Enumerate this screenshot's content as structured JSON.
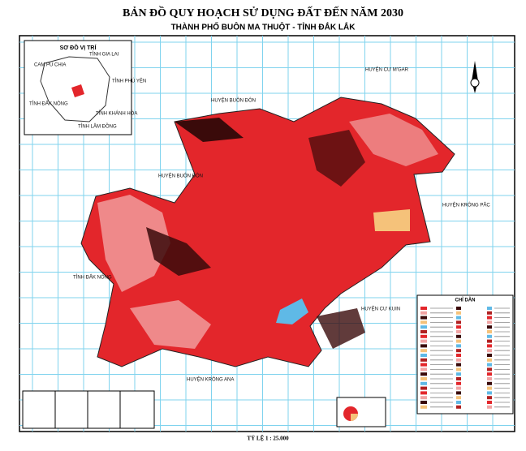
{
  "header": {
    "title": "BẢN ĐỒ QUY HOẠCH SỬ DỤNG ĐẤT ĐẾN NĂM 2030",
    "subtitle": "THÀNH PHỐ BUÔN MA THUỘT - TỈNH ĐẮK LẮK"
  },
  "inset": {
    "title": "SƠ ĐỒ VỊ TRÍ",
    "labels": [
      "CAM PU CHIA",
      "TỈNH GIA LAI",
      "TỈNH PHÚ YÊN",
      "TỈNH ĐẮK NÔNG",
      "TỈNH KHÁNH HÒA",
      "TỈNH LÂM ĐỒNG"
    ]
  },
  "regions": [
    "HUYỆN CƯ M'GAR",
    "HUYỆN BUÔN ĐÔN",
    "HUYỆN BUÔN ĐÔN",
    "HUYỆN KRÔNG PẮC",
    "TỈNH ĐẮK NÔNG",
    "HUYỆN CƯ KUIN",
    "HUYỆN KRÔNG ANA"
  ],
  "legend": {
    "title": "CHỈ DẪN"
  },
  "scale": "TỶ LỆ 1 : 25.000"
}
